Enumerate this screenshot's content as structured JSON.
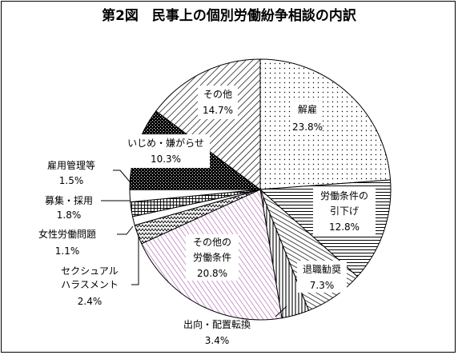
{
  "chart_data": {
    "type": "pie",
    "title": "第2図　民事上の個別労働紛争相談の内訳",
    "slices": [
      {
        "label": "解雇",
        "value": 23.8,
        "value_label": "23.8%",
        "pattern": "dots"
      },
      {
        "label": "労働条件の引下げ",
        "value": 12.8,
        "value_label": "12.8%",
        "pattern": "hatch-horizontal"
      },
      {
        "label": "退職勧奨",
        "value": 7.3,
        "value_label": "7.3%",
        "pattern": "hatch-diagonal"
      },
      {
        "label": "出向・配置転換",
        "value": 3.4,
        "value_label": "3.4%",
        "pattern": "hatch-vertical"
      },
      {
        "label": "その他の労働条件",
        "value": 20.8,
        "value_label": "20.8%",
        "pattern": "hatch-purple"
      },
      {
        "label": "セクシュアルハラスメント",
        "value": 2.4,
        "value_label": "2.4%",
        "pattern": "zigzag"
      },
      {
        "label": "女性労働問題",
        "value": 1.1,
        "value_label": "1.1%",
        "pattern": "white"
      },
      {
        "label": "募集・採用",
        "value": 1.8,
        "value_label": "1.8%",
        "pattern": "grid"
      },
      {
        "label": "雇用管理等",
        "value": 1.5,
        "value_label": "1.5%",
        "pattern": "white"
      },
      {
        "label": "いじめ・嫌がらせ",
        "value": 10.3,
        "value_label": "10.3%",
        "pattern": "dark-checker"
      },
      {
        "label": "その他",
        "value": 14.7,
        "value_label": "14.7%",
        "pattern": "hatch-diagonal-wide"
      }
    ]
  },
  "labels": {
    "kaiko": "解雇",
    "hikisage_1": "労働条件の",
    "hikisage_2": "引下げ",
    "taishoku": "退職勧奨",
    "shukko": "出向・配置転換",
    "sonota_jouken_1": "その他の",
    "sonota_jouken_2": "労働条件",
    "sekuhara_1": "セクシュアル",
    "sekuhara_2": "ハラスメント",
    "josei": "女性労働問題",
    "boshu": "募集・採用",
    "koyou": "雇用管理等",
    "ijime": "いじめ・嫌がらせ",
    "sonota": "その他"
  }
}
